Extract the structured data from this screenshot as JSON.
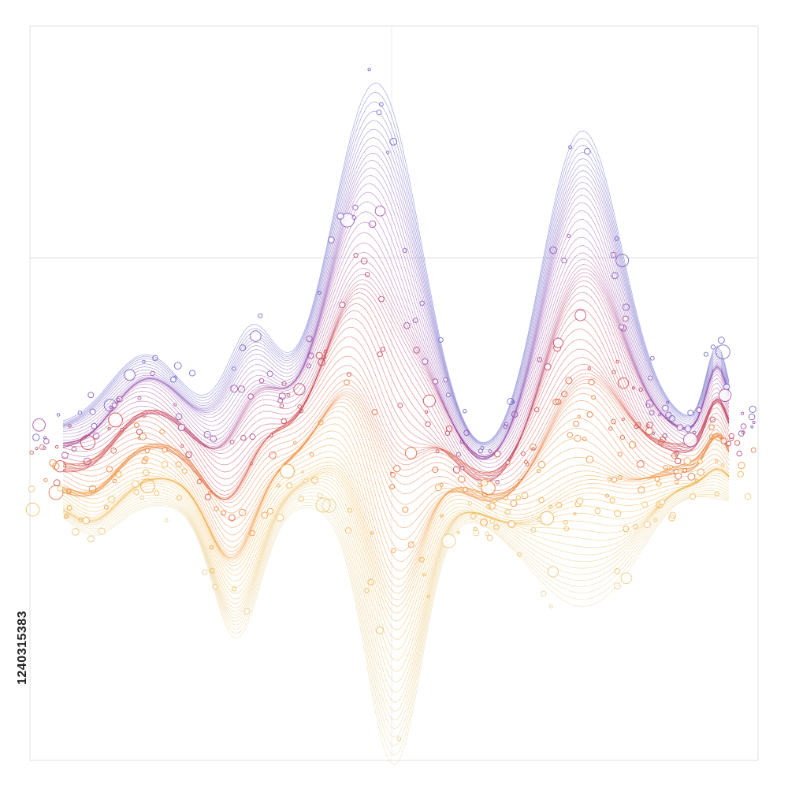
{
  "watermark_id": "1240315383"
}
